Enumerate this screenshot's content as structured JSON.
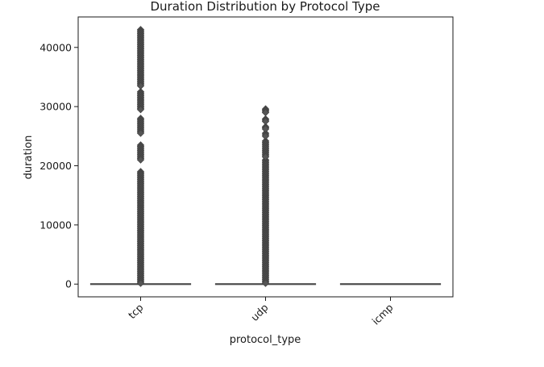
{
  "chart_data": {
    "type": "box",
    "title": "Duration Distribution by Protocol Type",
    "xlabel": "protocol_type",
    "ylabel": "duration",
    "categories": [
      "tcp",
      "udp",
      "icmp"
    ],
    "ylim": [
      -2150,
      45150
    ],
    "yticks": [
      0,
      10000,
      20000,
      30000,
      40000
    ],
    "ytick_labels": [
      "0",
      "10000",
      "20000",
      "30000",
      "40000"
    ],
    "xtick_rotation": 45,
    "grid": false,
    "colors": {
      "box": "#4c4c4c",
      "outlier": "#555555"
    },
    "boxes": [
      {
        "category": "tcp",
        "median": 0,
        "q1": 0,
        "q3": 0,
        "whisker_low": 0,
        "whisker_high": 0,
        "outliers": [
          {
            "from": 150,
            "to": 19000
          },
          {
            "from": 21000,
            "to": 23500
          },
          {
            "from": 25500,
            "to": 28000
          },
          {
            "from": 29500,
            "to": 32500
          },
          {
            "from": 33500,
            "to": 43000
          }
        ]
      },
      {
        "category": "udp",
        "median": 0,
        "q1": 0,
        "q3": 0,
        "whisker_low": 0,
        "whisker_high": 0,
        "outliers": [
          {
            "from": 150,
            "to": 21000
          },
          {
            "from": 21500,
            "to": 24200
          },
          {
            "from": 25000,
            "to": 25500
          },
          {
            "from": 26200,
            "to": 26600
          },
          {
            "from": 27500,
            "to": 27900
          },
          {
            "from": 29000,
            "to": 29600
          }
        ]
      },
      {
        "category": "icmp",
        "median": 0,
        "q1": 0,
        "q3": 0,
        "whisker_low": 0,
        "whisker_high": 0,
        "outliers": []
      }
    ]
  }
}
